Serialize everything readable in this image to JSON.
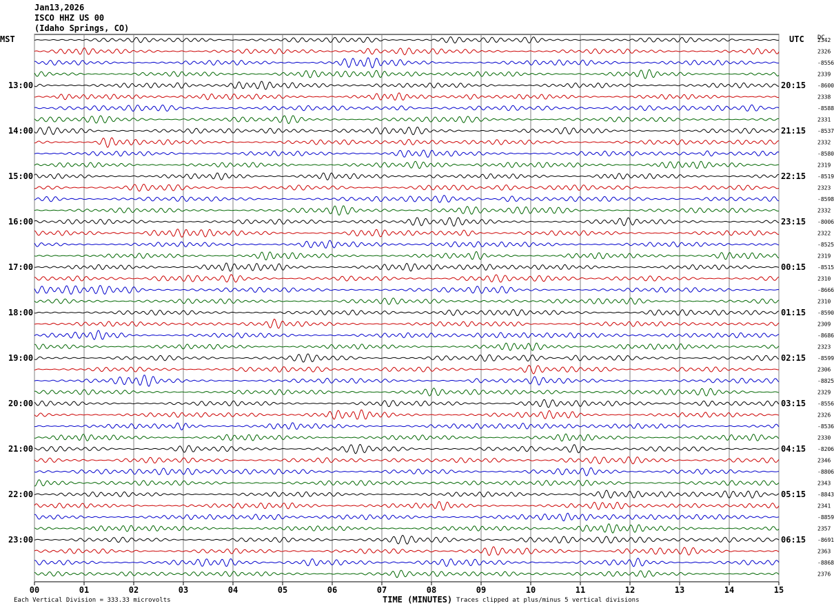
{
  "header": {
    "date": "Jan13,2026",
    "station": "ISCO HHZ US 00",
    "location": "(Idaho Springs, CO)"
  },
  "left_zone": "MST",
  "right_zone": "UTC",
  "dc_label": "DC",
  "footer": {
    "vertical_division": "Each Vertical Division =  333.33 microvolts",
    "xlabel": "TIME (MINUTES)",
    "clip_note": "Traces clipped at plus/minus 5 vertical divisions"
  },
  "colors": {
    "trace_cycle": [
      "#000000",
      "#cc0000",
      "#0000cc",
      "#006600"
    ],
    "grid": "#808080"
  },
  "chart_data": {
    "type": "line",
    "title": "",
    "xlabel": "TIME (MINUTES)",
    "ylabel": "",
    "xlim": [
      0,
      15
    ],
    "x_ticks": [
      "00",
      "01",
      "02",
      "03",
      "04",
      "05",
      "06",
      "07",
      "08",
      "09",
      "10",
      "11",
      "12",
      "13",
      "14",
      "15"
    ],
    "rows_per_hour": 4,
    "grid": true,
    "left_time_labels": [
      "13:00",
      "14:00",
      "15:00",
      "16:00",
      "17:00",
      "18:00",
      "19:00",
      "20:00",
      "21:00",
      "22:00",
      "23:00"
    ],
    "right_time_labels": [
      "20:15",
      "21:15",
      "22:15",
      "23:15",
      "00:15",
      "01:15",
      "02:15",
      "03:15",
      "04:15",
      "05:15",
      "06:15"
    ],
    "dc_offsets": [
      "2342",
      "2326",
      "-8556",
      "2339",
      "-8600",
      "2338",
      "-8588",
      "2331",
      "-8537",
      "2332",
      "-8580",
      "2319",
      "-8519",
      "2323",
      "-8598",
      "2332",
      "-8006",
      "2322",
      "-8525",
      "2319",
      "-8515",
      "2310",
      "-8666",
      "2310",
      "-8590",
      "2309",
      "-8686",
      "2323",
      "-8599",
      "2306",
      "-8825",
      "2329",
      "-8556",
      "2326",
      "-8536",
      "2330",
      "-8206",
      "2346",
      "-8806",
      "2343",
      "-8843",
      "2341",
      "-8859",
      "2357",
      "-8691",
      "2363",
      "-8868",
      "2376"
    ]
  }
}
